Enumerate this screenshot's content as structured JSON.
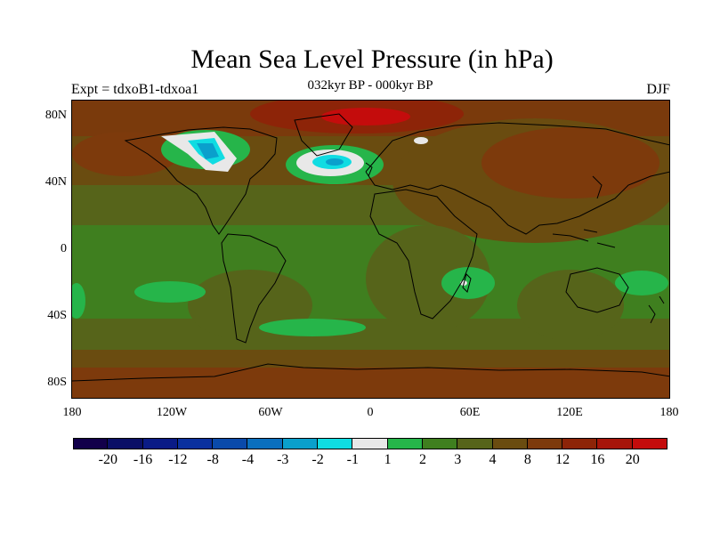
{
  "title": "Mean Sea Level Pressure (in hPa)",
  "experiment_label": "Expt = tdxoB1-tdxoa1",
  "period_label": "032kyr BP - 000kyr BP",
  "season_label": "DJF",
  "y_ticks": [
    "80N",
    "40N",
    "0",
    "40S",
    "80S"
  ],
  "x_ticks": [
    "180",
    "120W",
    "60W",
    "0",
    "60E",
    "120E",
    "180"
  ],
  "colorbar": {
    "colors": [
      "#12004a",
      "#0a0f66",
      "#0a1b86",
      "#0a309e",
      "#0a4aaa",
      "#0a6fbe",
      "#0aa0cc",
      "#10dce2",
      "#e8e8e8",
      "#26b54a",
      "#3f7f1f",
      "#56641a",
      "#6a4c10",
      "#7d3a0c",
      "#8d2408",
      "#a6150a",
      "#c40c0c"
    ],
    "labels": [
      "-20",
      "-16",
      "-12",
      "-8",
      "-4",
      "-3",
      "-2",
      "-1",
      "1",
      "2",
      "3",
      "4",
      "8",
      "12",
      "16",
      "20"
    ]
  }
}
